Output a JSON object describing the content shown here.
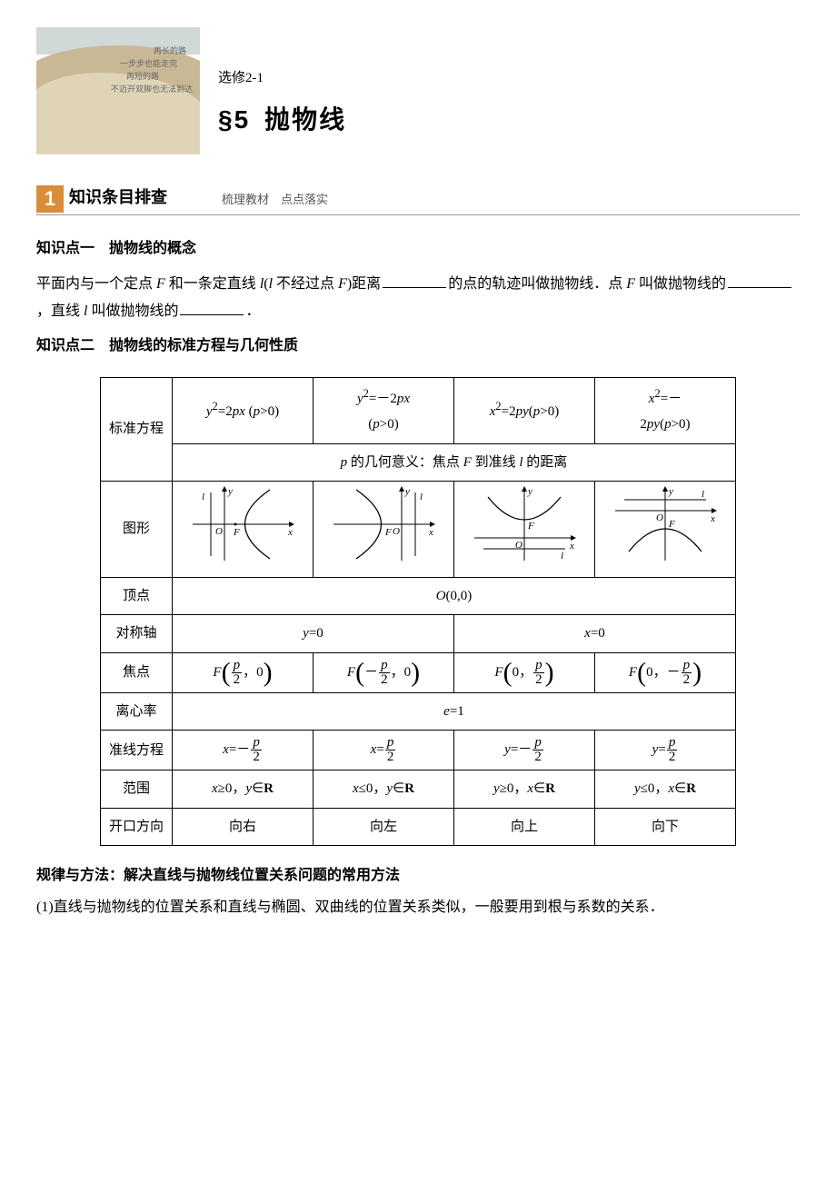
{
  "header": {
    "image_lines": [
      "再长的路",
      "一步步也能走完",
      "再短的路",
      "不迈开双脚也无法到达"
    ],
    "subtitle": "选修2-1",
    "title_prefix": "§5",
    "title_main": "抛物线"
  },
  "section1": {
    "num": "1",
    "title": "知识条目排查",
    "note": "梳理教材　点点落实"
  },
  "kp1": {
    "title": "知识点一　抛物线的概念",
    "p1a": "平面内与一个定点",
    "p1b": "和一条定直线",
    "p1c": "不经过点",
    "p1d": "距离",
    "p1e": "的点的轨迹叫做抛物线．点",
    "p1f": "叫做抛物线的",
    "p1g": "，直线",
    "p1h": "叫做抛物线的",
    "p1i": "．"
  },
  "kp2": {
    "title": "知识点二　抛物线的标准方程与几何性质"
  },
  "table": {
    "row_labels": {
      "eq": "标准方程",
      "geo": "p 的几何意义：焦点 F 到准线 l 的距离",
      "shape": "图形",
      "vertex": "顶点",
      "axis": "对称轴",
      "focus": "焦点",
      "ecc": "离心率",
      "directrix": "准线方程",
      "range": "范围",
      "dir": "开口方向"
    },
    "cols": [
      {
        "eq_html": "<span class='math'>y</span><sup>2</sup>=2<span class='math'>px</span> (<span class='math'>p</span>>0)",
        "axis": "y=0",
        "focus_x": "p",
        "focus_y": "0",
        "focus_sign": "",
        "focus_pos": "x",
        "dir_eq": "x=-",
        "range": "x≥0，y∈R",
        "open": "向右",
        "graph": {
          "type": "right"
        }
      },
      {
        "eq_html": "<span class='math'>y</span><sup>2</sup>=－2<span class='math'>px</span><br>(<span class='math'>p</span>>0)",
        "axis": "y=0",
        "focus_sign": "-",
        "focus_pos": "x",
        "dir_eq": "x=",
        "range": "x≤0，y∈R",
        "open": "向左",
        "graph": {
          "type": "left"
        }
      },
      {
        "eq_html": "<span class='math'>x</span><sup>2</sup>=2<span class='math'>py</span>(<span class='math'>p</span>>0)",
        "axis": "x=0",
        "focus_sign": "",
        "focus_pos": "y",
        "dir_eq": "y=-",
        "range": "y≥0，x∈R",
        "open": "向上",
        "graph": {
          "type": "up"
        }
      },
      {
        "eq_html": "<span class='math'>x</span><sup>2</sup>=－<br>2<span class='math'>py</span>(<span class='math'>p</span>>0)",
        "axis": "x=0",
        "focus_sign": "-",
        "focus_pos": "y",
        "dir_eq": "y=",
        "range": "y≤0，x∈R",
        "open": "向下",
        "graph": {
          "type": "down"
        }
      }
    ],
    "vertex": "O(0,0)",
    "ecc": "e=1"
  },
  "footer": {
    "rule_title": "规律与方法：解决直线与抛物线位置关系问题的常用方法",
    "p1": "(1)直线与抛物线的位置关系和直线与椭圆、双曲线的位置关系类似，一般要用到根与系数的关系．"
  },
  "graph_style": {
    "stroke": "#000",
    "stroke_width": 1.2,
    "label_font": "italic 12px 'Times New Roman'"
  }
}
